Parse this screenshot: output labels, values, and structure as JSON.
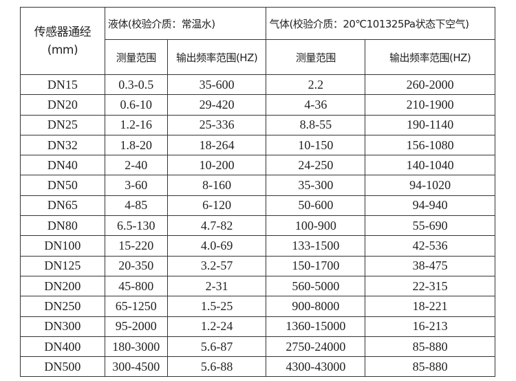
{
  "header": {
    "sensor_diameter": "传感器通经",
    "unit": "(mm)",
    "liquid_group": "液体(校验介质：常温水)",
    "gas_group": "气体(校验介质：20℃101325Pa状态下空气)",
    "liquid_range": "测量范围",
    "liquid_freq": "输出频率范围(HZ)",
    "gas_range": "测量范围",
    "gas_freq": "输出频率范围(HZ)"
  },
  "rows": [
    [
      "DN15",
      "0.3-0.5",
      "35-600",
      "2.2",
      "260-2000"
    ],
    [
      "DN20",
      "0.6-10",
      "29-420",
      "4-36",
      "210-1900"
    ],
    [
      "DN25",
      "1.2-16",
      "25-336",
      "8.8-55",
      "190-1140"
    ],
    [
      "DN32",
      "1.8-20",
      "18-264",
      "10-150",
      "156-1080"
    ],
    [
      "DN40",
      "2-40",
      "10-200",
      "24-250",
      "140-1040"
    ],
    [
      "DN50",
      "3-60",
      "8-160",
      "35-300",
      "94-1020"
    ],
    [
      "DN65",
      "4-85",
      "6-120",
      "50-600",
      "94-940"
    ],
    [
      "DN80",
      "6.5-130",
      "4.7-82",
      "100-900",
      "55-690"
    ],
    [
      "DN100",
      "15-220",
      "4.0-69",
      "133-1500",
      "42-536"
    ],
    [
      "DN125",
      "20-350",
      "3.2-57",
      "150-1700",
      "38-475"
    ],
    [
      "DN200",
      "45-800",
      "2-31",
      "560-5000",
      "22-315"
    ],
    [
      "DN250",
      "65-1250",
      "1.5-25",
      "900-8000",
      "18-221"
    ],
    [
      "DN300",
      "95-2000",
      "1.2-24",
      "1360-15000",
      "16-213"
    ],
    [
      "DN400",
      "180-3000",
      "5.6-87",
      "2750-24000",
      "85-880"
    ],
    [
      "DN500",
      "300-4500",
      "5.6-88",
      "4300-43000",
      "85-880"
    ]
  ]
}
